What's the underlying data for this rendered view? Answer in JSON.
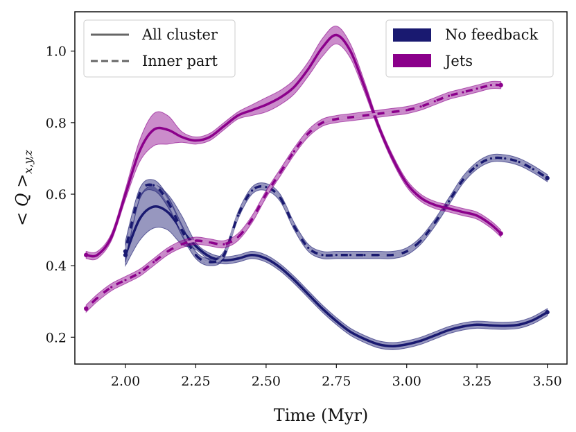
{
  "chart_data": {
    "type": "line",
    "xlabel": "Time (Myr)",
    "ylabel": "< Q >x,y,z",
    "xlim": [
      1.82,
      3.57
    ],
    "ylim": [
      0.125,
      1.11
    ],
    "xticks": [
      "2.00",
      "2.25",
      "2.50",
      "2.75",
      "3.00",
      "3.25",
      "3.50"
    ],
    "xtick_values": [
      2.0,
      2.25,
      2.5,
      2.75,
      3.0,
      3.25,
      3.5
    ],
    "yticks": [
      "0.2",
      "0.4",
      "0.6",
      "0.8",
      "1.0"
    ],
    "ytick_values": [
      0.2,
      0.4,
      0.6,
      0.8,
      1.0
    ],
    "grid": false,
    "style_legend": {
      "placement": "top-left",
      "entries": [
        {
          "label": "All cluster",
          "style": "solid"
        },
        {
          "label": "Inner part",
          "style": "dashed"
        }
      ]
    },
    "color_legend": {
      "placement": "top-right",
      "entries": [
        {
          "label": "No feedback",
          "color": "#191970"
        },
        {
          "label": "Jets",
          "color": "#8b008b"
        }
      ]
    },
    "series": [
      {
        "model": "No feedback",
        "region": "All cluster",
        "style": "solid",
        "color": "#191970",
        "x": [
          2.0,
          2.05,
          2.1,
          2.15,
          2.2,
          2.25,
          2.3,
          2.35,
          2.4,
          2.45,
          2.5,
          2.55,
          2.6,
          2.65,
          2.7,
          2.75,
          2.8,
          2.85,
          2.9,
          2.95,
          3.0,
          3.05,
          3.1,
          3.15,
          3.2,
          3.25,
          3.3,
          3.35,
          3.4,
          3.45,
          3.5
        ],
        "y": [
          0.43,
          0.53,
          0.565,
          0.55,
          0.5,
          0.455,
          0.425,
          0.415,
          0.42,
          0.43,
          0.42,
          0.395,
          0.36,
          0.32,
          0.28,
          0.245,
          0.215,
          0.195,
          0.18,
          0.175,
          0.18,
          0.19,
          0.205,
          0.22,
          0.23,
          0.235,
          0.233,
          0.232,
          0.235,
          0.248,
          0.27
        ],
        "band": [
          0.03,
          0.06,
          0.06,
          0.05,
          0.04,
          0.01,
          0.01,
          0.01,
          0.01,
          0.01,
          0.01,
          0.01,
          0.01,
          0.01,
          0.01,
          0.01,
          0.01,
          0.01,
          0.01,
          0.01,
          0.01,
          0.01,
          0.01,
          0.01,
          0.01,
          0.01,
          0.01,
          0.01,
          0.01,
          0.01,
          0.01
        ]
      },
      {
        "model": "No feedback",
        "region": "Inner part",
        "style": "dashed",
        "color": "#191970",
        "x": [
          2.0,
          2.05,
          2.1,
          2.15,
          2.2,
          2.25,
          2.3,
          2.35,
          2.4,
          2.45,
          2.5,
          2.55,
          2.6,
          2.65,
          2.7,
          2.75,
          2.8,
          2.85,
          2.9,
          2.95,
          3.0,
          3.05,
          3.1,
          3.15,
          3.2,
          3.25,
          3.3,
          3.35,
          3.4,
          3.45,
          3.5
        ],
        "y": [
          0.44,
          0.6,
          0.625,
          0.58,
          0.5,
          0.43,
          0.41,
          0.43,
          0.54,
          0.61,
          0.62,
          0.59,
          0.51,
          0.45,
          0.43,
          0.43,
          0.43,
          0.43,
          0.43,
          0.43,
          0.44,
          0.47,
          0.52,
          0.58,
          0.64,
          0.68,
          0.7,
          0.7,
          0.69,
          0.67,
          0.645
        ],
        "band": [
          0.03,
          0.015,
          0.015,
          0.015,
          0.015,
          0.01,
          0.01,
          0.01,
          0.01,
          0.01,
          0.01,
          0.01,
          0.01,
          0.01,
          0.01,
          0.01,
          0.01,
          0.01,
          0.01,
          0.01,
          0.01,
          0.01,
          0.01,
          0.01,
          0.01,
          0.01,
          0.01,
          0.01,
          0.01,
          0.01,
          0.01
        ]
      },
      {
        "model": "Jets",
        "region": "All cluster",
        "style": "solid",
        "color": "#8b008b",
        "x": [
          1.86,
          1.9,
          1.95,
          2.0,
          2.05,
          2.1,
          2.15,
          2.2,
          2.25,
          2.3,
          2.35,
          2.4,
          2.45,
          2.5,
          2.55,
          2.6,
          2.65,
          2.7,
          2.75,
          2.8,
          2.85,
          2.9,
          2.95,
          3.0,
          3.05,
          3.1,
          3.15,
          3.2,
          3.25,
          3.3,
          3.335
        ],
        "y": [
          0.43,
          0.43,
          0.48,
          0.6,
          0.72,
          0.78,
          0.78,
          0.76,
          0.75,
          0.76,
          0.79,
          0.82,
          0.835,
          0.85,
          0.87,
          0.9,
          0.95,
          1.01,
          1.045,
          1.0,
          0.9,
          0.79,
          0.7,
          0.63,
          0.59,
          0.57,
          0.56,
          0.55,
          0.54,
          0.515,
          0.49
        ],
        "band": [
          0.01,
          0.01,
          0.01,
          0.015,
          0.03,
          0.045,
          0.04,
          0.015,
          0.01,
          0.01,
          0.01,
          0.01,
          0.015,
          0.02,
          0.02,
          0.02,
          0.02,
          0.025,
          0.025,
          0.02,
          0.015,
          0.01,
          0.01,
          0.01,
          0.01,
          0.01,
          0.01,
          0.01,
          0.01,
          0.01,
          0.01
        ]
      },
      {
        "model": "Jets",
        "region": "Inner part",
        "style": "dashed",
        "color": "#8b008b",
        "x": [
          1.86,
          1.9,
          1.95,
          2.0,
          2.05,
          2.1,
          2.15,
          2.2,
          2.25,
          2.3,
          2.35,
          2.4,
          2.45,
          2.5,
          2.55,
          2.6,
          2.65,
          2.7,
          2.75,
          2.8,
          2.85,
          2.9,
          2.95,
          3.0,
          3.05,
          3.1,
          3.15,
          3.2,
          3.25,
          3.3,
          3.335
        ],
        "y": [
          0.28,
          0.31,
          0.34,
          0.36,
          0.38,
          0.41,
          0.44,
          0.46,
          0.47,
          0.465,
          0.46,
          0.48,
          0.53,
          0.6,
          0.66,
          0.72,
          0.77,
          0.8,
          0.81,
          0.815,
          0.82,
          0.825,
          0.83,
          0.835,
          0.845,
          0.86,
          0.875,
          0.885,
          0.895,
          0.905,
          0.905
        ],
        "band": [
          0.01,
          0.01,
          0.01,
          0.01,
          0.01,
          0.01,
          0.01,
          0.01,
          0.01,
          0.01,
          0.01,
          0.01,
          0.01,
          0.01,
          0.01,
          0.01,
          0.01,
          0.01,
          0.01,
          0.01,
          0.01,
          0.01,
          0.01,
          0.01,
          0.01,
          0.01,
          0.01,
          0.01,
          0.01,
          0.01,
          0.01
        ]
      }
    ]
  }
}
